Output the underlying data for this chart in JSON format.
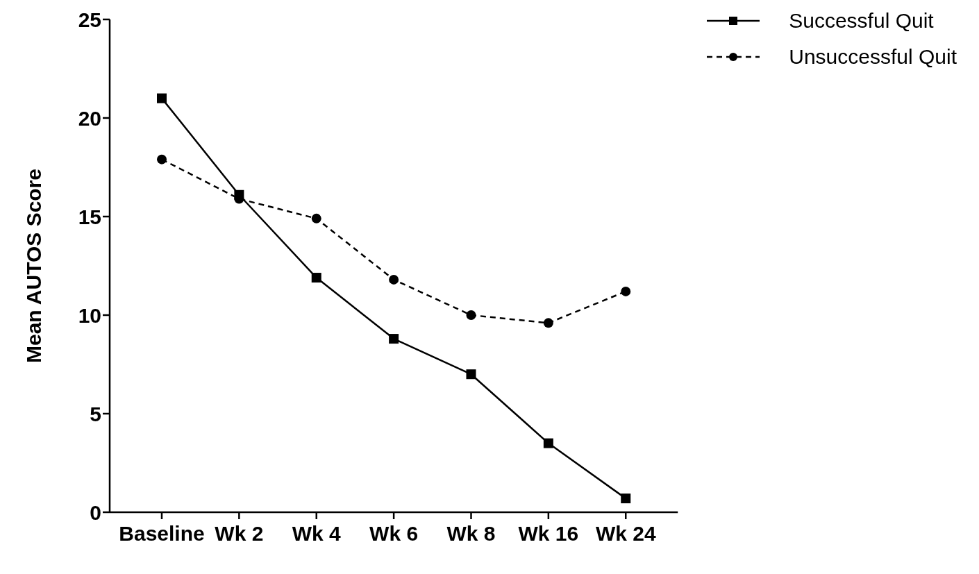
{
  "chart_data": {
    "type": "line",
    "ylabel": "Mean AUTOS Score",
    "categories": [
      "Baseline",
      "Wk 2",
      "Wk 4",
      "Wk 6",
      "Wk 8",
      "Wk 16",
      "Wk 24"
    ],
    "series": [
      {
        "name": "Successful Quit",
        "color": "#000000",
        "marker": "square",
        "line_style": "solid",
        "values": [
          21.0,
          16.1,
          11.9,
          8.8,
          7.0,
          3.5,
          0.7
        ]
      },
      {
        "name": "Unsuccessful Quit",
        "color": "#000000",
        "marker": "circle",
        "line_style": "dashed",
        "values": [
          17.9,
          15.9,
          14.9,
          11.8,
          10.0,
          9.6,
          11.2
        ]
      }
    ],
    "ylim": [
      0,
      25
    ],
    "yticks": [
      0,
      5,
      10,
      15,
      20,
      25
    ],
    "grid": false,
    "legend": "top right"
  }
}
